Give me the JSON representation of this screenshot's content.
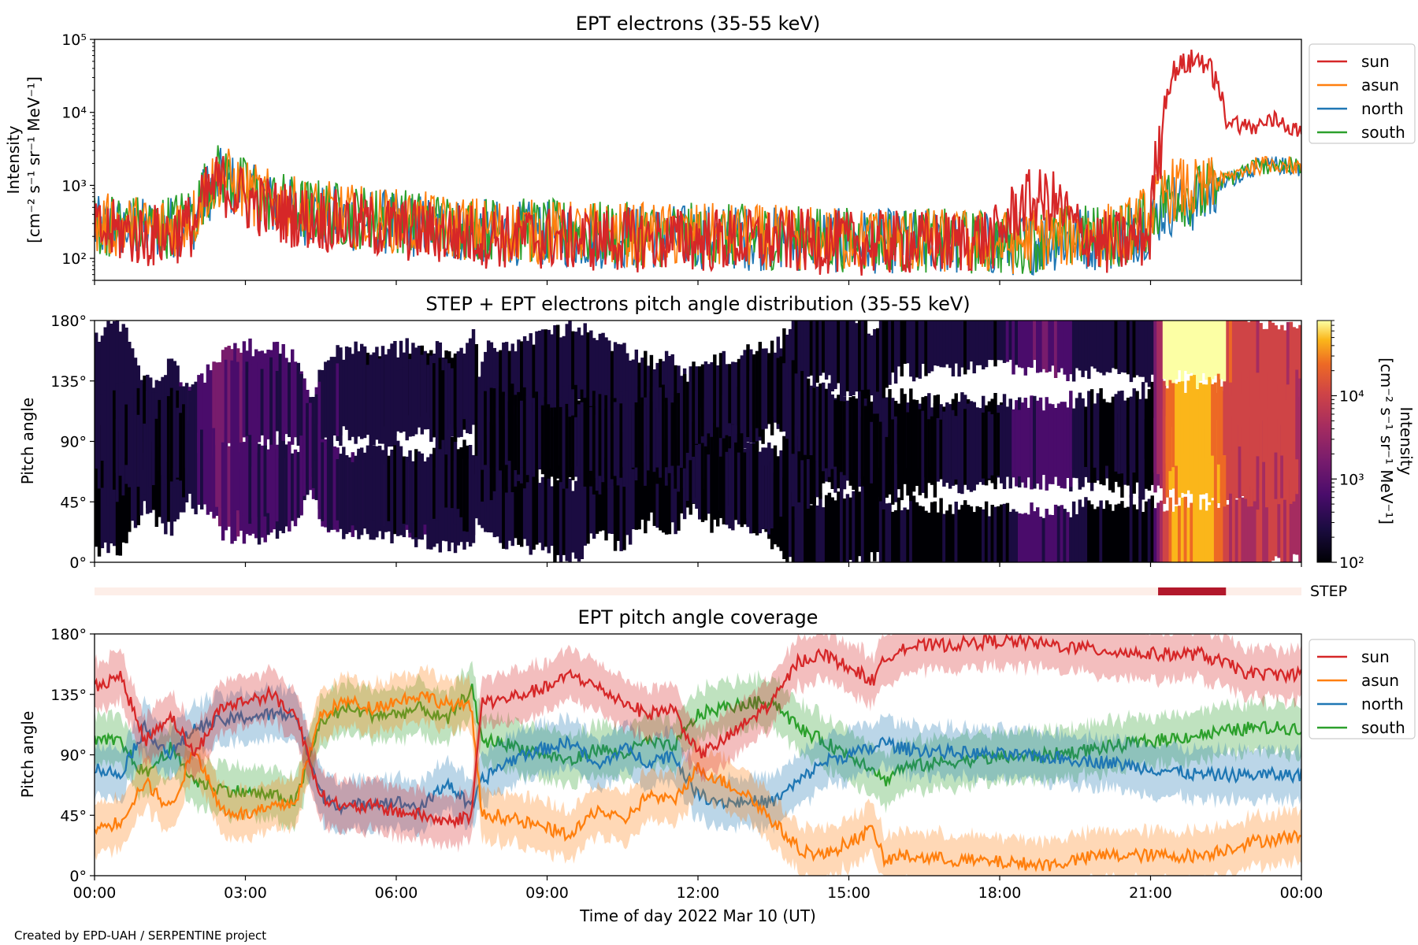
{
  "colors": {
    "sun": "#d62728",
    "asun": "#ff7f0e",
    "north": "#1f77b4",
    "south": "#2ca02c",
    "step_bar": "#b2182b",
    "step_track": "#fdeee8"
  },
  "credit": "Created by EPD-UAH / SERPENTINE project",
  "chart_data": [
    {
      "type": "line",
      "title": "EPT electrons (35-55 keV)",
      "ylabel_line1": "Intensity",
      "ylabel_line2": "[cm⁻² s⁻¹ sr⁻¹ MeV⁻¹]",
      "yscale": "log",
      "ylim": [
        50,
        100000
      ],
      "ytick_labels": [
        "10²",
        "10³",
        "10⁴",
        "10⁵"
      ],
      "ytick_values": [
        100,
        1000,
        10000,
        100000
      ],
      "xlim_hours": [
        0,
        24
      ],
      "legend_placement": "outside-right-top",
      "legend": [
        "sun",
        "asun",
        "north",
        "south"
      ],
      "x_hours": [
        0,
        0.5,
        1,
        1.5,
        2,
        2.3,
        2.5,
        3,
        3.5,
        4,
        4.5,
        5,
        6,
        7,
        8,
        9,
        10,
        11,
        12,
        13,
        14,
        15,
        16,
        17,
        18,
        18.5,
        19,
        19.5,
        20,
        20.5,
        21,
        21.2,
        21.5,
        22,
        22.5,
        23,
        23.5,
        24
      ],
      "series": [
        {
          "name": "sun",
          "values": [
            250,
            260,
            220,
            230,
            330,
            900,
            1200,
            700,
            520,
            420,
            380,
            330,
            280,
            240,
            220,
            210,
            200,
            200,
            200,
            190,
            190,
            180,
            180,
            180,
            220,
            650,
            700,
            280,
            180,
            180,
            240,
            3500,
            40000,
            55000,
            8000,
            6000,
            8000,
            5000
          ]
        },
        {
          "name": "asun",
          "values": [
            300,
            320,
            280,
            300,
            420,
            1100,
            1500,
            900,
            650,
            520,
            470,
            420,
            360,
            300,
            270,
            250,
            240,
            230,
            230,
            220,
            210,
            200,
            200,
            190,
            180,
            190,
            220,
            230,
            230,
            250,
            450,
            800,
            1000,
            900,
            1200,
            1800,
            2000,
            1800
          ]
        },
        {
          "name": "north",
          "values": [
            280,
            300,
            270,
            290,
            400,
            1000,
            1300,
            850,
            600,
            480,
            430,
            380,
            330,
            280,
            250,
            240,
            220,
            220,
            220,
            210,
            200,
            190,
            190,
            180,
            170,
            180,
            200,
            210,
            210,
            220,
            330,
            500,
            650,
            700,
            1100,
            1700,
            1900,
            1700
          ]
        },
        {
          "name": "south",
          "values": [
            320,
            330,
            290,
            310,
            450,
            1200,
            1600,
            950,
            680,
            540,
            490,
            430,
            370,
            310,
            280,
            260,
            240,
            230,
            230,
            220,
            210,
            200,
            200,
            190,
            180,
            190,
            210,
            220,
            220,
            240,
            380,
            650,
            850,
            800,
            1150,
            1750,
            1950,
            1750
          ]
        }
      ]
    },
    {
      "type": "heatmap",
      "title": "STEP + EPT electrons pitch angle distribution (35-55 keV)",
      "ylabel": "Pitch angle",
      "ylim": [
        0,
        180
      ],
      "ytick_labels": [
        "0°",
        "45°",
        "90°",
        "135°",
        "180°"
      ],
      "colorbar": {
        "label_line1": "Intensity",
        "label_line2": "[cm⁻² s⁻¹ sr⁻¹ MeV⁻¹]",
        "scale": "log",
        "range": [
          100,
          80000
        ],
        "tick_labels": [
          "10²",
          "10³",
          "10⁴"
        ],
        "tick_values": [
          100,
          1000,
          10000
        ],
        "colormap": "inferno"
      },
      "step_label": "STEP",
      "step_coverage_hours": [
        21.15,
        22.5
      ]
    },
    {
      "type": "line",
      "title": "EPT pitch angle coverage",
      "ylabel": "Pitch angle",
      "xlabel": "Time of day 2022 Mar 10 (UT)",
      "ylim": [
        0,
        180
      ],
      "ytick_labels": [
        "0°",
        "45°",
        "90°",
        "135°",
        "180°"
      ],
      "ytick_values": [
        0,
        45,
        90,
        135,
        180
      ],
      "xlim_hours": [
        0,
        24
      ],
      "xtick_labels": [
        "00:00",
        "03:00",
        "06:00",
        "09:00",
        "12:00",
        "15:00",
        "18:00",
        "21:00",
        "00:00"
      ],
      "xtick_values": [
        0,
        3,
        6,
        9,
        12,
        15,
        18,
        21,
        24
      ],
      "legend_placement": "outside-right-top",
      "legend": [
        "sun",
        "asun",
        "north",
        "south"
      ],
      "x_hours": [
        0,
        0.5,
        1,
        1.5,
        2,
        2.5,
        3,
        3.5,
        4,
        4.5,
        5,
        5.5,
        6,
        6.5,
        7,
        7.5,
        7.7,
        8,
        8.5,
        9,
        9.5,
        10,
        10.5,
        11,
        11.5,
        12,
        12.5,
        13,
        13.5,
        14,
        14.5,
        15,
        15.5,
        15.7,
        16,
        17,
        18,
        19,
        20,
        21,
        22,
        23,
        24
      ],
      "series": [
        {
          "name": "sun",
          "values": [
            140,
            150,
            100,
            120,
            90,
            125,
            130,
            135,
            120,
            60,
            50,
            52,
            48,
            45,
            40,
            45,
            130,
            130,
            135,
            140,
            150,
            140,
            130,
            120,
            125,
            90,
            100,
            115,
            130,
            160,
            165,
            155,
            145,
            160,
            170,
            172,
            175,
            172,
            168,
            165,
            165,
            150,
            150
          ]
        },
        {
          "name": "asun",
          "values": [
            35,
            40,
            70,
            50,
            95,
            50,
            45,
            50,
            55,
            120,
            130,
            125,
            130,
            135,
            128,
            125,
            45,
            45,
            40,
            35,
            30,
            50,
            40,
            60,
            55,
            80,
            70,
            60,
            40,
            20,
            15,
            25,
            35,
            10,
            15,
            12,
            10,
            8,
            15,
            15,
            15,
            25,
            30
          ]
        },
        {
          "name": "north",
          "values": [
            80,
            75,
            110,
            90,
            110,
            115,
            118,
            120,
            120,
            60,
            50,
            55,
            55,
            50,
            70,
            50,
            70,
            80,
            90,
            95,
            100,
            80,
            95,
            85,
            90,
            60,
            55,
            55,
            55,
            70,
            85,
            90,
            95,
            100,
            95,
            92,
            90,
            88,
            85,
            80,
            75,
            75,
            75
          ]
        },
        {
          "name": "south",
          "values": [
            100,
            100,
            75,
            95,
            70,
            65,
            62,
            60,
            55,
            115,
            125,
            120,
            120,
            125,
            115,
            140,
            100,
            100,
            95,
            90,
            85,
            95,
            90,
            100,
            95,
            120,
            125,
            128,
            130,
            110,
            100,
            90,
            80,
            70,
            80,
            85,
            88,
            90,
            95,
            100,
            105,
            110,
            110
          ]
        }
      ]
    }
  ]
}
